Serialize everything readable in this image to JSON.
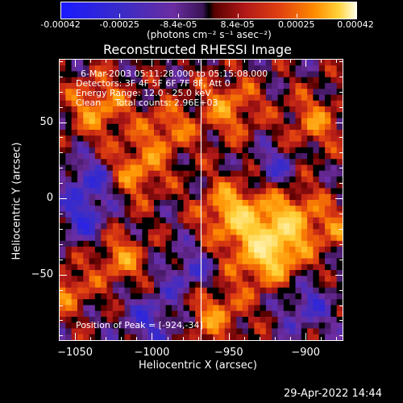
{
  "colorbar": {
    "ticks": [
      "-0.00042",
      "-0.00025",
      "-8.4e-05",
      "8.4e-05",
      "0.00025",
      "0.00042"
    ],
    "units": "(photons cm⁻² s⁻¹ asec⁻²)"
  },
  "chart_data": {
    "type": "heatmap",
    "title": "Reconstructed RHESSI Image",
    "xlabel": "Heliocentric X (arcsec)",
    "ylabel": "Heliocentric Y (arcsec)",
    "xlim": [
      -1060,
      -876
    ],
    "ylim": [
      -93,
      91
    ],
    "xticks": [
      -1050,
      -1000,
      -950,
      -900
    ],
    "xtick_labels": [
      "−1050",
      "−1000",
      "−950",
      "−900"
    ],
    "yticks": [
      -50,
      0,
      50
    ],
    "ytick_labels": [
      "−50",
      "0",
      "50"
    ],
    "value_range": [
      -0.00042,
      0.00042
    ],
    "peak": {
      "x": -924,
      "y": -34
    },
    "vertical_line_x": -968,
    "annotations": [
      "6-Mar-2003 05:11:28.000 to 05:15:08.000",
      "Detectors: 3F 4F 5F 6F 7F 8F, Att 0",
      "Energy Range: 12.0 - 25.0 keV",
      "Clean     Total counts: 2.96E+03"
    ],
    "peak_label": "Position of Peak = [-924,-34]"
  },
  "footer": {
    "timestamp": "29-Apr-2022 14:44"
  }
}
